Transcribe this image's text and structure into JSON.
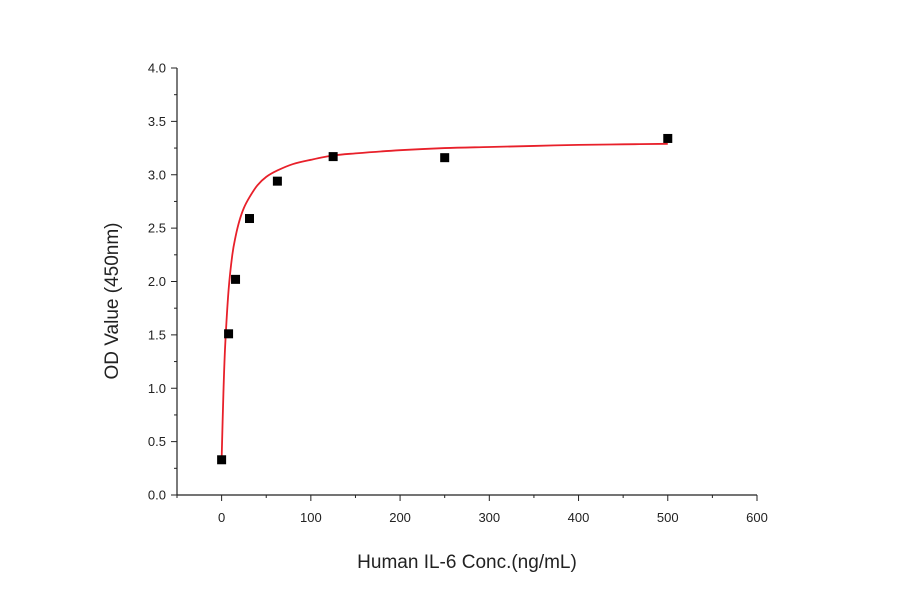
{
  "chart_data": {
    "type": "scatter",
    "title": "",
    "xlabel": "Human IL-6 Conc.(ng/mL)",
    "ylabel": "OD Value (450nm)",
    "xlim": [
      -50,
      600
    ],
    "ylim": [
      0,
      4.0
    ],
    "x_ticks": [
      0,
      100,
      200,
      300,
      400,
      500,
      600
    ],
    "x_tick_labels": [
      "0",
      "100",
      "200",
      "300",
      "400",
      "500",
      "600"
    ],
    "y_ticks": [
      0,
      0.5,
      1.0,
      1.5,
      2.0,
      2.5,
      3.0,
      3.5,
      4.0
    ],
    "y_tick_labels": [
      "0.0",
      "0.5",
      "1.0",
      "1.5",
      "2.0",
      "2.5",
      "3.0",
      "3.5",
      "4.0"
    ],
    "grid": false,
    "legend": "none",
    "series": [
      {
        "kind": "points",
        "marker": "square",
        "color": "#000000",
        "x": [
          0,
          7.8,
          15.6,
          31.25,
          62.5,
          125,
          250,
          500
        ],
        "y": [
          0.33,
          1.51,
          2.02,
          2.59,
          2.94,
          3.17,
          3.16,
          3.34
        ]
      },
      {
        "kind": "fit-curve",
        "color": "#e8202a",
        "x": [
          0,
          2,
          4,
          7.8,
          12,
          15.6,
          20,
          25,
          31.25,
          40,
          50,
          62.5,
          80,
          100,
          125,
          150,
          200,
          250,
          300,
          350,
          400,
          450,
          500
        ],
        "y": [
          0.33,
          0.95,
          1.4,
          1.92,
          2.25,
          2.42,
          2.57,
          2.69,
          2.79,
          2.9,
          2.98,
          3.04,
          3.1,
          3.14,
          3.18,
          3.2,
          3.23,
          3.25,
          3.26,
          3.27,
          3.28,
          3.285,
          3.29
        ]
      }
    ]
  }
}
